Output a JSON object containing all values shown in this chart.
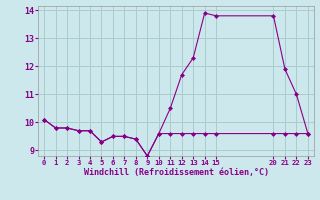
{
  "background_color": "#cce8ec",
  "grid_color": "#aacccc",
  "line_color": "#880088",
  "marker_color": "#880088",
  "xlabel": "Windchill (Refroidissement éolien,°C)",
  "series1_x": [
    0,
    1,
    2,
    3,
    4,
    5,
    6,
    7,
    8,
    9,
    10,
    11,
    12,
    13,
    14,
    15,
    20,
    21,
    22,
    23
  ],
  "series1_y": [
    10.1,
    9.8,
    9.8,
    9.7,
    9.7,
    9.3,
    9.5,
    9.5,
    9.4,
    8.8,
    9.6,
    9.6,
    9.6,
    9.6,
    9.6,
    9.6,
    9.6,
    9.6,
    9.6,
    9.6
  ],
  "series2_x": [
    0,
    1,
    2,
    3,
    4,
    5,
    6,
    7,
    8,
    9,
    10,
    11,
    12,
    13,
    14,
    15,
    20,
    21,
    22,
    23
  ],
  "series2_y": [
    10.1,
    9.8,
    9.8,
    9.7,
    9.7,
    9.3,
    9.5,
    9.5,
    9.4,
    8.8,
    9.6,
    10.5,
    11.7,
    12.3,
    13.9,
    13.8,
    13.8,
    11.9,
    11.0,
    9.6
  ],
  "ylim": [
    8.8,
    14.15
  ],
  "yticks": [
    9,
    10,
    11,
    12,
    13,
    14
  ],
  "xtick_positions": [
    0,
    1,
    2,
    3,
    4,
    5,
    6,
    7,
    8,
    9,
    10,
    11,
    12,
    13,
    14,
    15,
    20,
    21,
    22,
    23
  ],
  "xtick_labels": [
    "0",
    "1",
    "2",
    "3",
    "4",
    "5",
    "6",
    "7",
    "8",
    "9",
    "10",
    "11",
    "12",
    "13",
    "14",
    "15",
    "20",
    "21",
    "22",
    "23"
  ],
  "xlim": [
    -0.5,
    23.5
  ]
}
